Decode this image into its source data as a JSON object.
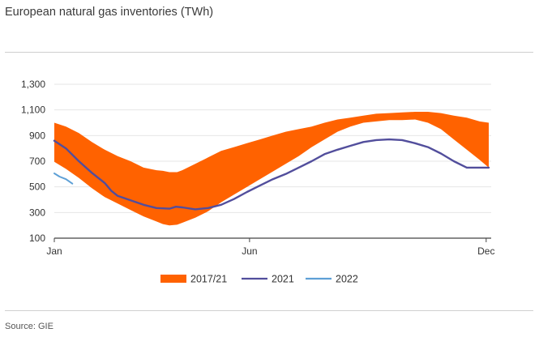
{
  "title": "European natural gas inventories (TWh)",
  "source": "Source: GIE",
  "colors": {
    "band": "#ff6200",
    "line2021": "#524e9c",
    "line2022": "#5ea0d6",
    "grid": "#e6e6e6",
    "axis": "#444444"
  },
  "chart_data": {
    "type": "area",
    "ylim": [
      100,
      1300
    ],
    "yticks": [
      100,
      300,
      500,
      700,
      900,
      1100,
      1300
    ],
    "ytick_labels": [
      "100",
      "300",
      "500",
      "700",
      "900",
      "1,100",
      "1,300"
    ],
    "xlim": [
      1,
      337
    ],
    "xticks": [
      {
        "x": 1,
        "label": "Jan"
      },
      {
        "x": 152,
        "label": "Jun"
      },
      {
        "x": 335,
        "label": "Dec"
      }
    ],
    "grid": true,
    "legend_position": "bottom",
    "series": [
      {
        "name": "2017/21",
        "kind": "band",
        "x": [
          1,
          10,
          20,
          30,
          40,
          50,
          60,
          70,
          80,
          85,
          90,
          96,
          100,
          110,
          120,
          130,
          140,
          150,
          160,
          170,
          180,
          190,
          200,
          210,
          220,
          230,
          240,
          250,
          260,
          270,
          280,
          290,
          300,
          310,
          320,
          330,
          337
        ],
        "lower": [
          695,
          640,
          570,
          490,
          420,
          370,
          320,
          270,
          230,
          210,
          200,
          205,
          220,
          260,
          310,
          380,
          440,
          500,
          560,
          620,
          680,
          740,
          810,
          870,
          930,
          970,
          1000,
          1010,
          1020,
          1020,
          1025,
          1000,
          950,
          870,
          790,
          710,
          650
        ],
        "upper": [
          1000,
          970,
          920,
          850,
          790,
          740,
          700,
          650,
          630,
          625,
          615,
          615,
          630,
          680,
          730,
          780,
          810,
          840,
          870,
          900,
          930,
          950,
          970,
          1000,
          1025,
          1040,
          1055,
          1070,
          1075,
          1080,
          1085,
          1085,
          1075,
          1055,
          1040,
          1010,
          1000
        ]
      },
      {
        "name": "2021",
        "kind": "line",
        "x": [
          1,
          10,
          20,
          30,
          40,
          45,
          50,
          60,
          70,
          80,
          90,
          95,
          100,
          110,
          120,
          130,
          140,
          150,
          160,
          170,
          180,
          190,
          200,
          210,
          220,
          230,
          240,
          250,
          260,
          270,
          280,
          290,
          300,
          310,
          320,
          330,
          337
        ],
        "y": [
          860,
          800,
          700,
          610,
          530,
          470,
          430,
          395,
          360,
          335,
          330,
          345,
          340,
          325,
          335,
          360,
          405,
          460,
          510,
          560,
          600,
          650,
          700,
          755,
          790,
          820,
          850,
          865,
          870,
          865,
          840,
          810,
          760,
          700,
          650,
          650,
          650
        ]
      },
      {
        "name": "2022",
        "kind": "line",
        "x": [
          1,
          5,
          10,
          15
        ],
        "y": [
          605,
          580,
          560,
          525
        ]
      }
    ]
  }
}
